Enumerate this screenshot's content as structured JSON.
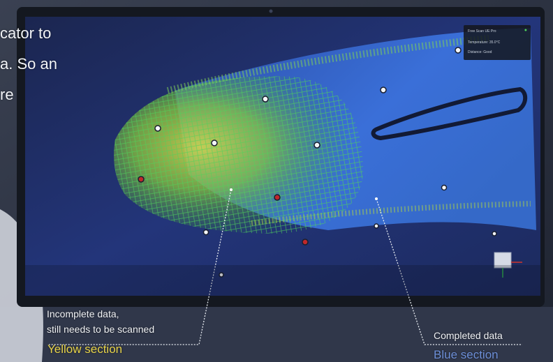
{
  "overlay_lines": [
    "cator to",
    "a. So an",
    "re"
  ],
  "scanner_panel": {
    "lines": [
      "Free Scan UE Pro",
      "Temperature: 35.0°C",
      "Distance: Good"
    ]
  },
  "viewport_title": "",
  "captions": {
    "incomplete_line1": "Incomplete data,",
    "incomplete_line2": "still needs to be scanned",
    "yellow_section": "Yellow section",
    "completed": "Completed data",
    "blue_section": "Blue section"
  },
  "colors": {
    "scan_surface": "#2d5fbf",
    "mesh_green": "#3fbf46",
    "mesh_yellow": "#c9d23a",
    "marker_red": "#c0282a",
    "yellow_label": "#e8d44a",
    "blue_label": "#6d8fd8"
  },
  "icons": [
    "wifi-icon",
    "view-cube-icon"
  ]
}
